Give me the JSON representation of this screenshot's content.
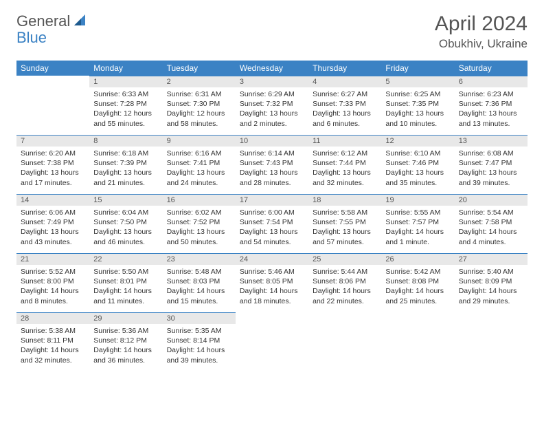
{
  "brand": {
    "part1": "General",
    "part2": "Blue",
    "accent_color": "#3b82c4"
  },
  "title": "April 2024",
  "location": "Obukhiv, Ukraine",
  "colors": {
    "header_bg": "#3b82c4",
    "header_text": "#ffffff",
    "daynum_bg": "#e8e8e8",
    "border": "#3b82c4",
    "text": "#333333",
    "title_text": "#555555"
  },
  "weekdays": [
    "Sunday",
    "Monday",
    "Tuesday",
    "Wednesday",
    "Thursday",
    "Friday",
    "Saturday"
  ],
  "weeks": [
    [
      null,
      {
        "n": "1",
        "sr": "Sunrise: 6:33 AM",
        "ss": "Sunset: 7:28 PM",
        "d1": "Daylight: 12 hours",
        "d2": "and 55 minutes."
      },
      {
        "n": "2",
        "sr": "Sunrise: 6:31 AM",
        "ss": "Sunset: 7:30 PM",
        "d1": "Daylight: 12 hours",
        "d2": "and 58 minutes."
      },
      {
        "n": "3",
        "sr": "Sunrise: 6:29 AM",
        "ss": "Sunset: 7:32 PM",
        "d1": "Daylight: 13 hours",
        "d2": "and 2 minutes."
      },
      {
        "n": "4",
        "sr": "Sunrise: 6:27 AM",
        "ss": "Sunset: 7:33 PM",
        "d1": "Daylight: 13 hours",
        "d2": "and 6 minutes."
      },
      {
        "n": "5",
        "sr": "Sunrise: 6:25 AM",
        "ss": "Sunset: 7:35 PM",
        "d1": "Daylight: 13 hours",
        "d2": "and 10 minutes."
      },
      {
        "n": "6",
        "sr": "Sunrise: 6:23 AM",
        "ss": "Sunset: 7:36 PM",
        "d1": "Daylight: 13 hours",
        "d2": "and 13 minutes."
      }
    ],
    [
      {
        "n": "7",
        "sr": "Sunrise: 6:20 AM",
        "ss": "Sunset: 7:38 PM",
        "d1": "Daylight: 13 hours",
        "d2": "and 17 minutes."
      },
      {
        "n": "8",
        "sr": "Sunrise: 6:18 AM",
        "ss": "Sunset: 7:39 PM",
        "d1": "Daylight: 13 hours",
        "d2": "and 21 minutes."
      },
      {
        "n": "9",
        "sr": "Sunrise: 6:16 AM",
        "ss": "Sunset: 7:41 PM",
        "d1": "Daylight: 13 hours",
        "d2": "and 24 minutes."
      },
      {
        "n": "10",
        "sr": "Sunrise: 6:14 AM",
        "ss": "Sunset: 7:43 PM",
        "d1": "Daylight: 13 hours",
        "d2": "and 28 minutes."
      },
      {
        "n": "11",
        "sr": "Sunrise: 6:12 AM",
        "ss": "Sunset: 7:44 PM",
        "d1": "Daylight: 13 hours",
        "d2": "and 32 minutes."
      },
      {
        "n": "12",
        "sr": "Sunrise: 6:10 AM",
        "ss": "Sunset: 7:46 PM",
        "d1": "Daylight: 13 hours",
        "d2": "and 35 minutes."
      },
      {
        "n": "13",
        "sr": "Sunrise: 6:08 AM",
        "ss": "Sunset: 7:47 PM",
        "d1": "Daylight: 13 hours",
        "d2": "and 39 minutes."
      }
    ],
    [
      {
        "n": "14",
        "sr": "Sunrise: 6:06 AM",
        "ss": "Sunset: 7:49 PM",
        "d1": "Daylight: 13 hours",
        "d2": "and 43 minutes."
      },
      {
        "n": "15",
        "sr": "Sunrise: 6:04 AM",
        "ss": "Sunset: 7:50 PM",
        "d1": "Daylight: 13 hours",
        "d2": "and 46 minutes."
      },
      {
        "n": "16",
        "sr": "Sunrise: 6:02 AM",
        "ss": "Sunset: 7:52 PM",
        "d1": "Daylight: 13 hours",
        "d2": "and 50 minutes."
      },
      {
        "n": "17",
        "sr": "Sunrise: 6:00 AM",
        "ss": "Sunset: 7:54 PM",
        "d1": "Daylight: 13 hours",
        "d2": "and 54 minutes."
      },
      {
        "n": "18",
        "sr": "Sunrise: 5:58 AM",
        "ss": "Sunset: 7:55 PM",
        "d1": "Daylight: 13 hours",
        "d2": "and 57 minutes."
      },
      {
        "n": "19",
        "sr": "Sunrise: 5:55 AM",
        "ss": "Sunset: 7:57 PM",
        "d1": "Daylight: 14 hours",
        "d2": "and 1 minute."
      },
      {
        "n": "20",
        "sr": "Sunrise: 5:54 AM",
        "ss": "Sunset: 7:58 PM",
        "d1": "Daylight: 14 hours",
        "d2": "and 4 minutes."
      }
    ],
    [
      {
        "n": "21",
        "sr": "Sunrise: 5:52 AM",
        "ss": "Sunset: 8:00 PM",
        "d1": "Daylight: 14 hours",
        "d2": "and 8 minutes."
      },
      {
        "n": "22",
        "sr": "Sunrise: 5:50 AM",
        "ss": "Sunset: 8:01 PM",
        "d1": "Daylight: 14 hours",
        "d2": "and 11 minutes."
      },
      {
        "n": "23",
        "sr": "Sunrise: 5:48 AM",
        "ss": "Sunset: 8:03 PM",
        "d1": "Daylight: 14 hours",
        "d2": "and 15 minutes."
      },
      {
        "n": "24",
        "sr": "Sunrise: 5:46 AM",
        "ss": "Sunset: 8:05 PM",
        "d1": "Daylight: 14 hours",
        "d2": "and 18 minutes."
      },
      {
        "n": "25",
        "sr": "Sunrise: 5:44 AM",
        "ss": "Sunset: 8:06 PM",
        "d1": "Daylight: 14 hours",
        "d2": "and 22 minutes."
      },
      {
        "n": "26",
        "sr": "Sunrise: 5:42 AM",
        "ss": "Sunset: 8:08 PM",
        "d1": "Daylight: 14 hours",
        "d2": "and 25 minutes."
      },
      {
        "n": "27",
        "sr": "Sunrise: 5:40 AM",
        "ss": "Sunset: 8:09 PM",
        "d1": "Daylight: 14 hours",
        "d2": "and 29 minutes."
      }
    ],
    [
      {
        "n": "28",
        "sr": "Sunrise: 5:38 AM",
        "ss": "Sunset: 8:11 PM",
        "d1": "Daylight: 14 hours",
        "d2": "and 32 minutes."
      },
      {
        "n": "29",
        "sr": "Sunrise: 5:36 AM",
        "ss": "Sunset: 8:12 PM",
        "d1": "Daylight: 14 hours",
        "d2": "and 36 minutes."
      },
      {
        "n": "30",
        "sr": "Sunrise: 5:35 AM",
        "ss": "Sunset: 8:14 PM",
        "d1": "Daylight: 14 hours",
        "d2": "and 39 minutes."
      },
      null,
      null,
      null,
      null
    ]
  ]
}
